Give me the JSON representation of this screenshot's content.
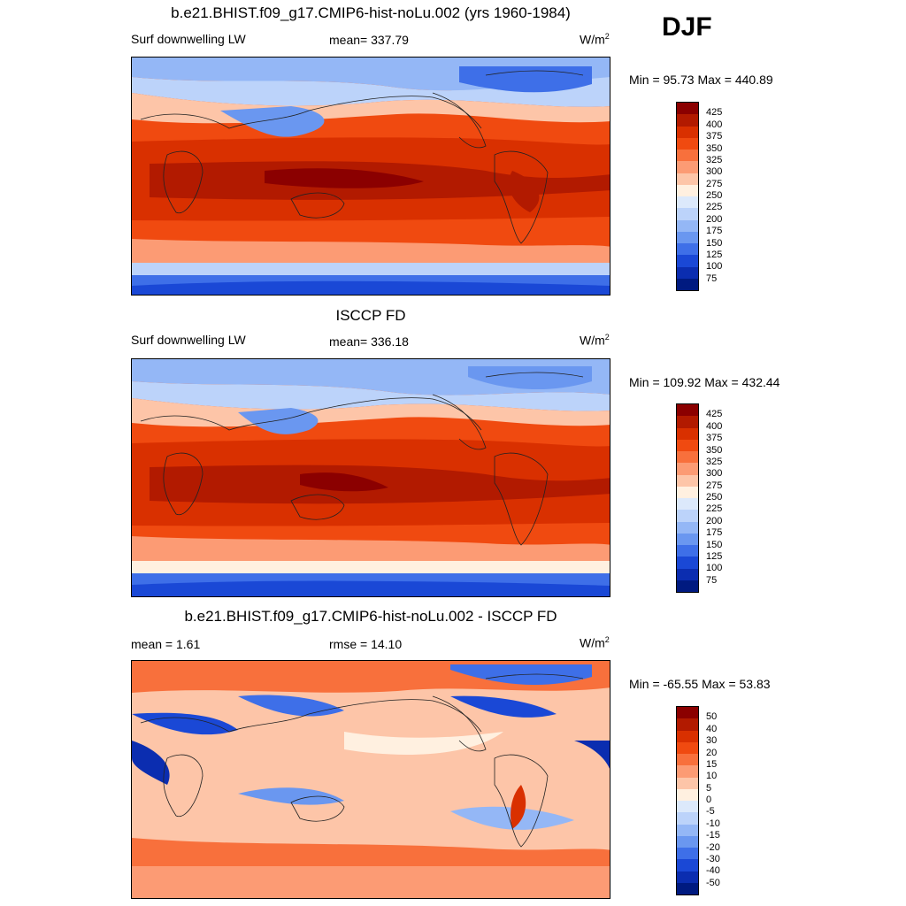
{
  "season": "DJF",
  "panels": [
    {
      "title": "b.e21.BHIST.f09_g17.CMIP6-hist-noLu.002 (yrs 1960-1984)",
      "left_label": "Surf downwelling LW",
      "center_label": "mean= 337.79",
      "unit_base": "W/m",
      "unit_exp": "2",
      "minmax": "Min =  95.73 Max = 440.89",
      "colorbar": {
        "levels": [
          "425",
          "400",
          "375",
          "350",
          "325",
          "300",
          "275",
          "250",
          "225",
          "200",
          "175",
          "150",
          "125",
          "100",
          "75"
        ],
        "colors": [
          "#8b0000",
          "#b21a00",
          "#d93000",
          "#f04a10",
          "#f8703c",
          "#fc9b74",
          "#fdc5a8",
          "#fff0e0",
          "#dce9fb",
          "#bcd3fa",
          "#94b7f6",
          "#6a97f0",
          "#3e6fe8",
          "#1a48d6",
          "#0b2db0",
          "#001a80"
        ]
      }
    },
    {
      "title": "ISCCP FD",
      "left_label": "Surf downwelling LW",
      "center_label": "mean= 336.18",
      "unit_base": "W/m",
      "unit_exp": "2",
      "minmax": "Min = 109.92 Max = 432.44",
      "colorbar": {
        "levels": [
          "425",
          "400",
          "375",
          "350",
          "325",
          "300",
          "275",
          "250",
          "225",
          "200",
          "175",
          "150",
          "125",
          "100",
          "75"
        ],
        "colors": [
          "#8b0000",
          "#b21a00",
          "#d93000",
          "#f04a10",
          "#f8703c",
          "#fc9b74",
          "#fdc5a8",
          "#fff0e0",
          "#dce9fb",
          "#bcd3fa",
          "#94b7f6",
          "#6a97f0",
          "#3e6fe8",
          "#1a48d6",
          "#0b2db0",
          "#001a80"
        ]
      }
    },
    {
      "title": "b.e21.BHIST.f09_g17.CMIP6-hist-noLu.002 - ISCCP FD",
      "left_label": "mean =   1.61",
      "center_label": "rmse =  14.10",
      "unit_base": "W/m",
      "unit_exp": "2",
      "minmax": "Min = -65.55 Max =  53.83",
      "colorbar": {
        "levels": [
          "50",
          "40",
          "30",
          "20",
          "15",
          "10",
          "5",
          "0",
          "-5",
          "-10",
          "-15",
          "-20",
          "-30",
          "-40",
          "-50"
        ],
        "colors": [
          "#8b0000",
          "#b21a00",
          "#d93000",
          "#f04a10",
          "#f8703c",
          "#fc9b74",
          "#fdc5a8",
          "#fff0e0",
          "#dce9fb",
          "#bcd3fa",
          "#94b7f6",
          "#6a97f0",
          "#3e6fe8",
          "#1a48d6",
          "#0b2db0",
          "#001a80"
        ]
      }
    }
  ]
}
